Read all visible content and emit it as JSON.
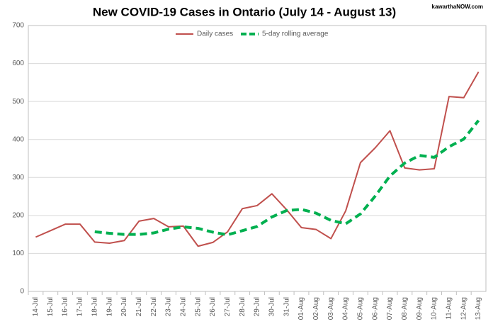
{
  "chart_data": {
    "type": "line",
    "title": "New COVID-19 Cases in Ontario (July 14 - August 13)",
    "watermark": "kawarthaNOW.com",
    "categories": [
      "14-Jul",
      "15-Jul",
      "16-Jul",
      "17-Jul",
      "18-Jul",
      "19-Jul",
      "20-Jul",
      "21-Jul",
      "22-Jul",
      "23-Jul",
      "24-Jul",
      "25-Jul",
      "26-Jul",
      "27-Jul",
      "28-Jul",
      "29-Jul",
      "30-Jul",
      "31-Jul",
      "01-Aug",
      "02-Aug",
      "03-Aug",
      "04-Aug",
      "05-Aug",
      "06-Aug",
      "07-Aug",
      "08-Aug",
      "09-Aug",
      "10-Aug",
      "11-Aug",
      "12-Aug",
      "13-Aug"
    ],
    "series": [
      {
        "name": "Daily cases",
        "color": "#c0504d",
        "dashed": false,
        "values": [
          143,
          160,
          177,
          177,
          130,
          127,
          134,
          185,
          192,
          170,
          172,
          119,
          129,
          157,
          218,
          226,
          257,
          215,
          168,
          163,
          139,
          212,
          339,
          378,
          423,
          325,
          320,
          323,
          513,
          510,
          578
        ]
      },
      {
        "name": "5-day rolling average",
        "color": "#00b050",
        "dashed": true,
        "values": [
          null,
          null,
          null,
          null,
          157,
          153,
          150,
          150,
          154,
          164,
          170,
          166,
          156,
          149,
          160,
          171,
          196,
          213,
          216,
          206,
          187,
          178,
          204,
          251,
          304,
          338,
          358,
          353,
          381,
          401,
          450
        ]
      }
    ],
    "ylim": [
      0,
      700
    ],
    "yticks": [
      0,
      100,
      200,
      300,
      400,
      500,
      600,
      700
    ],
    "grid": true,
    "legend": "top"
  }
}
